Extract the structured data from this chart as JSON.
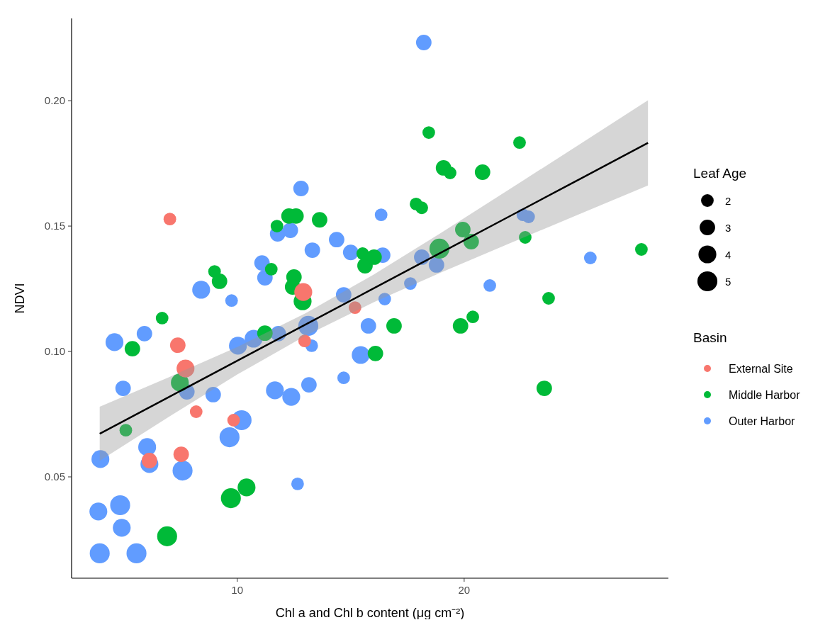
{
  "chart_data": {
    "type": "bubble",
    "xlabel": "Chl a and Chl b content (μg cm⁻²)",
    "ylabel": "NDVI",
    "legend_title": "Basin",
    "annotations": [
      "Leaf Age"
    ],
    "legend": "right",
    "marker": "circle",
    "grid": false,
    "xlim": [
      2.7,
      29.0
    ],
    "ylim": [
      0.0096,
      0.2328
    ],
    "xticks": [
      10,
      20
    ],
    "yticks": [
      {
        "value": 0.05,
        "label": "0.05"
      },
      {
        "value": 0.1,
        "label": "0.10"
      },
      {
        "value": 0.15,
        "label": "0.15"
      },
      {
        "value": 0.2,
        "label": "0.20"
      }
    ],
    "size_legend": [
      2,
      3,
      4,
      5
    ],
    "series": [
      {
        "name": "External Site",
        "color": "#f8766d",
        "x": [
          7.03,
          7.38,
          7.72,
          6.13,
          7.53,
          8.19,
          9.84,
          12.91,
          12.97,
          15.19
        ],
        "values": [
          0.1528,
          0.1025,
          0.0932,
          0.0565,
          0.059,
          0.076,
          0.0726,
          0.1237,
          0.1042,
          0.1175
        ],
        "sizes": [
          2,
          3,
          4,
          3,
          3,
          2,
          2,
          4,
          2,
          2
        ]
      },
      {
        "name": "Middle Harbor",
        "color": "#00ba38",
        "x": [
          5.38,
          6.69,
          7.47,
          5.09,
          6.91,
          9.72,
          10.41,
          9.0,
          9.22,
          11.22,
          11.5,
          11.75,
          12.28,
          12.59,
          12.5,
          12.44,
          12.88,
          13.63,
          15.53,
          15.63,
          16.03,
          16.91,
          16.09,
          18.44,
          19.09,
          19.38,
          20.81,
          17.88,
          18.13,
          18.91,
          19.94,
          20.31,
          19.84,
          20.38,
          22.44,
          22.69,
          23.72,
          27.81,
          23.53
        ],
        "values": [
          0.1011,
          0.1133,
          0.0876,
          0.0686,
          0.0263,
          0.0415,
          0.0458,
          0.1319,
          0.128,
          0.1073,
          0.1328,
          0.15,
          0.154,
          0.154,
          0.1297,
          0.1257,
          0.12,
          0.1525,
          0.139,
          0.1342,
          0.1376,
          0.1102,
          0.0992,
          0.1873,
          0.1732,
          0.1712,
          0.1715,
          0.1588,
          0.1573,
          0.141,
          0.1486,
          0.1438,
          0.1102,
          0.1138,
          0.1833,
          0.1455,
          0.1212,
          0.1407,
          0.0853
        ],
        "sizes": [
          3,
          2,
          4,
          2,
          5,
          5,
          4,
          2,
          3,
          3,
          2,
          2,
          3,
          3,
          3,
          3,
          4,
          3,
          2,
          3,
          3,
          3,
          3,
          2,
          3,
          2,
          3,
          2,
          2,
          5,
          3,
          3,
          3,
          2,
          2,
          2,
          2,
          2,
          3
        ]
      },
      {
        "name": "Outer Harbor",
        "color": "#619cff",
        "x": [
          4.59,
          5.91,
          8.41,
          9.75,
          11.09,
          11.22,
          11.78,
          12.34,
          12.81,
          14.38,
          15.0,
          13.31,
          16.41,
          16.34,
          18.13,
          18.78,
          17.63,
          14.69,
          16.5,
          13.13,
          13.28,
          15.78,
          15.44,
          14.69,
          13.16,
          12.38,
          11.66,
          12.66,
          18.22,
          22.59,
          22.84,
          25.56,
          21.13,
          10.03,
          10.72,
          11.81,
          4.97,
          7.78,
          8.94,
          10.19,
          9.66,
          3.97,
          6.03,
          6.13,
          7.59,
          3.88,
          4.84,
          4.91,
          3.94,
          5.56
        ],
        "values": [
          0.1037,
          0.1071,
          0.1246,
          0.1203,
          0.1353,
          0.1294,
          0.1469,
          0.1483,
          0.165,
          0.1446,
          0.1395,
          0.1404,
          0.1384,
          0.1545,
          0.1376,
          0.1345,
          0.1271,
          0.1226,
          0.1209,
          0.1102,
          0.1023,
          0.1102,
          0.0986,
          0.0895,
          0.0867,
          0.0819,
          0.0845,
          0.0472,
          0.2232,
          0.1545,
          0.1537,
          0.1373,
          0.1263,
          0.1023,
          0.1051,
          0.1071,
          0.0853,
          0.0839,
          0.0828,
          0.0726,
          0.0658,
          0.0571,
          0.0619,
          0.0551,
          0.0525,
          0.0362,
          0.0387,
          0.0297,
          0.0195,
          0.0195
        ],
        "sizes": [
          4,
          3,
          4,
          2,
          3,
          3,
          3,
          3,
          3,
          3,
          3,
          3,
          3,
          2,
          3,
          3,
          2,
          3,
          2,
          5,
          2,
          3,
          4,
          2,
          3,
          4,
          4,
          2,
          3,
          2,
          2,
          2,
          2,
          4,
          4,
          3,
          3,
          3,
          3,
          5,
          5,
          4,
          4,
          4,
          5,
          4,
          5,
          4,
          5,
          5
        ]
      },
      {
        "type": "line",
        "marker": "none",
        "color": "#000000",
        "x": [
          3.94,
          7,
          10,
          13,
          16,
          19,
          22,
          25,
          28.1
        ],
        "values": [
          0.0672,
          0.0819,
          0.0963,
          0.1107,
          0.1251,
          0.1395,
          0.1539,
          0.1683,
          0.1832
        ],
        "lower": [
          0.0564,
          0.074,
          0.0908,
          0.1062,
          0.1196,
          0.1316,
          0.1431,
          0.1545,
          0.1662
        ],
        "upper": [
          0.078,
          0.0898,
          0.1018,
          0.1152,
          0.1306,
          0.1474,
          0.1647,
          0.1821,
          0.2002
        ]
      }
    ]
  }
}
